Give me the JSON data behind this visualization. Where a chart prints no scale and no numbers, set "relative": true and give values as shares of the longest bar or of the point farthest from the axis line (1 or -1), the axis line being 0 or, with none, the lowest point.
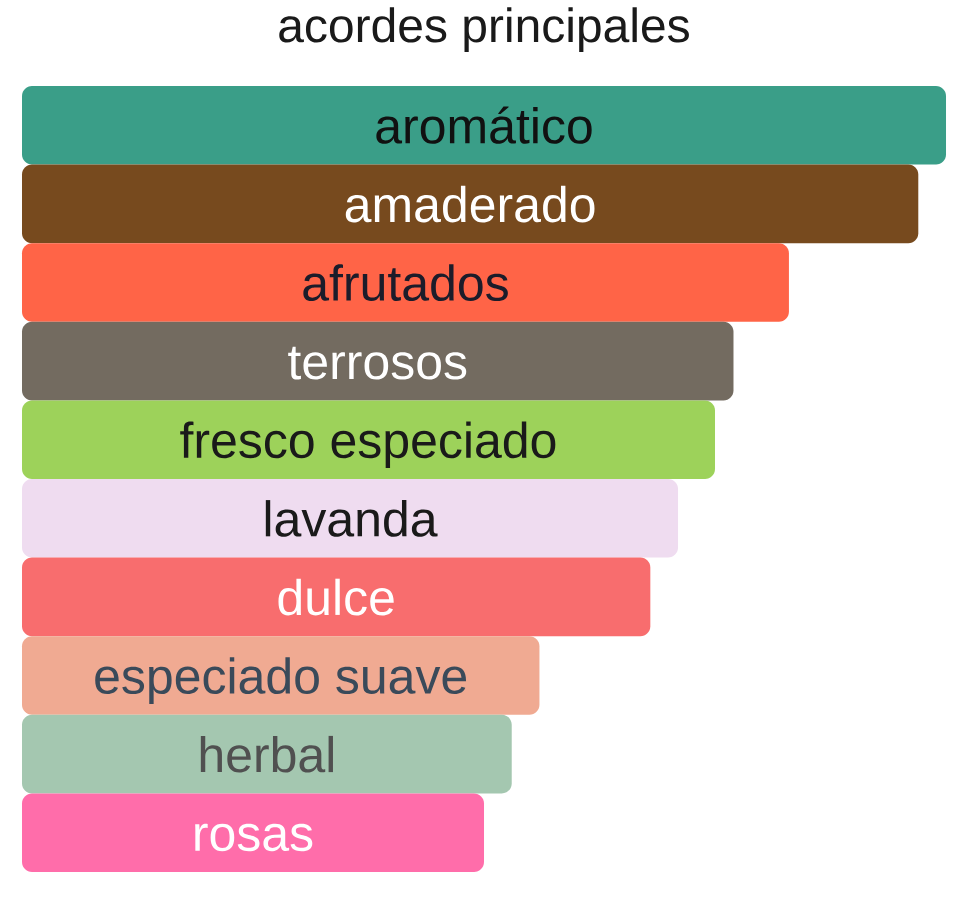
{
  "chart_data": {
    "type": "bar",
    "orientation": "horizontal",
    "relative": true,
    "title": "acordes principales",
    "categories": [
      "aromático",
      "amaderado",
      "afrutados",
      "terrosos",
      "fresco especiado",
      "lavanda",
      "dulce",
      "especiado suave",
      "herbal",
      "rosas"
    ],
    "values": [
      1,
      0.97,
      0.83,
      0.77,
      0.75,
      0.71,
      0.68,
      0.56,
      0.53,
      0.5
    ],
    "colors": [
      "#3a9e88",
      "#774a1e",
      "#ff6447",
      "#736b60",
      "#9dd25a",
      "#efdcf0",
      "#f86d6e",
      "#f0aa92",
      "#a4c7b0",
      "#ff6daa"
    ]
  }
}
